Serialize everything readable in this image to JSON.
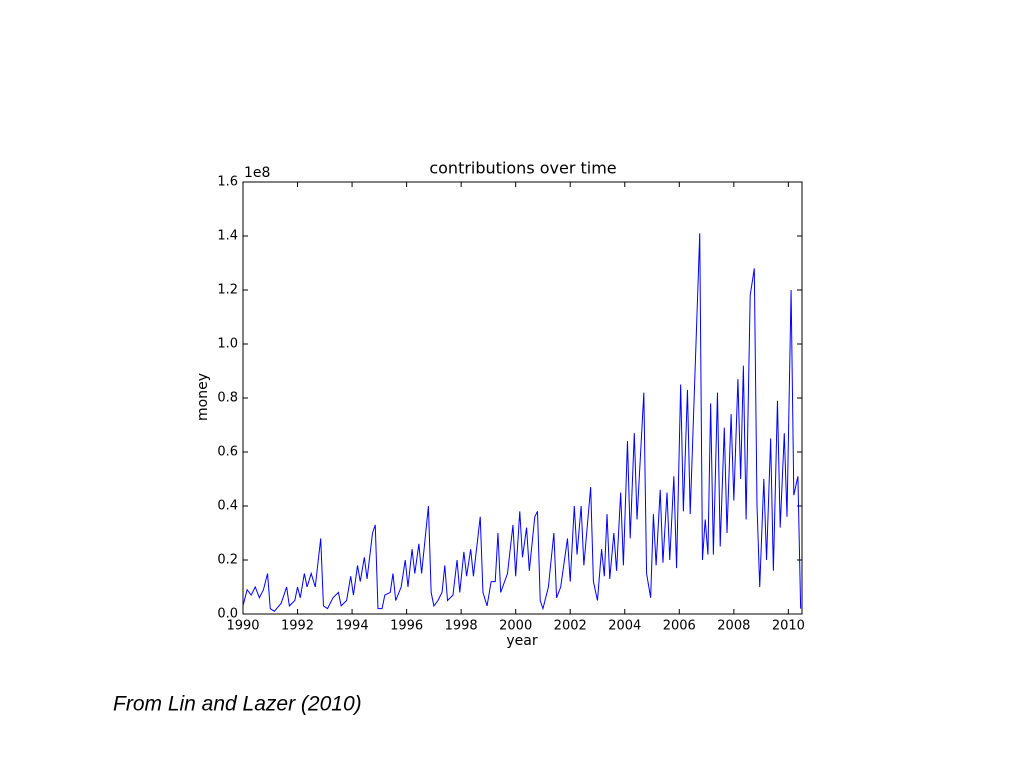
{
  "chart_data": {
    "type": "line",
    "title": "contributions over time",
    "xlabel": "year",
    "ylabel": "money",
    "y_offset_label": "1e8",
    "caption": "From Lin and Lazer (2010)",
    "x": [
      1990.0,
      1990.15,
      1990.3,
      1990.45,
      1990.6,
      1990.75,
      1990.9,
      1991.0,
      1991.15,
      1991.4,
      1991.6,
      1991.7,
      1991.9,
      1992.0,
      1992.1,
      1992.25,
      1992.35,
      1992.5,
      1992.65,
      1992.85,
      1992.95,
      1993.1,
      1993.3,
      1993.5,
      1993.6,
      1993.8,
      1993.95,
      1994.05,
      1994.2,
      1994.3,
      1994.45,
      1994.55,
      1994.75,
      1994.85,
      1994.95,
      1995.1,
      1995.2,
      1995.4,
      1995.5,
      1995.6,
      1995.8,
      1995.95,
      1996.05,
      1996.2,
      1996.3,
      1996.45,
      1996.55,
      1996.8,
      1996.9,
      1997.0,
      1997.15,
      1997.3,
      1997.4,
      1997.5,
      1997.7,
      1997.85,
      1997.95,
      1998.1,
      1998.2,
      1998.35,
      1998.45,
      1998.7,
      1998.8,
      1998.95,
      1999.1,
      1999.25,
      1999.35,
      1999.45,
      1999.7,
      1999.9,
      2000.0,
      2000.15,
      2000.25,
      2000.4,
      2000.5,
      2000.7,
      2000.8,
      2000.9,
      2001.0,
      2001.2,
      2001.4,
      2001.5,
      2001.65,
      2001.9,
      2002.0,
      2002.15,
      2002.25,
      2002.4,
      2002.5,
      2002.75,
      2002.85,
      2003.0,
      2003.15,
      2003.25,
      2003.35,
      2003.45,
      2003.6,
      2003.7,
      2003.85,
      2003.95,
      2004.1,
      2004.2,
      2004.35,
      2004.45,
      2004.7,
      2004.8,
      2004.95,
      2005.05,
      2005.15,
      2005.3,
      2005.4,
      2005.55,
      2005.65,
      2005.8,
      2005.9,
      2006.05,
      2006.15,
      2006.3,
      2006.4,
      2006.75,
      2006.85,
      2006.95,
      2007.05,
      2007.15,
      2007.25,
      2007.4,
      2007.5,
      2007.65,
      2007.75,
      2007.9,
      2008.0,
      2008.15,
      2008.25,
      2008.35,
      2008.45,
      2008.6,
      2008.75,
      2008.85,
      2008.95,
      2009.1,
      2009.2,
      2009.35,
      2009.45,
      2009.6,
      2009.7,
      2009.85,
      2009.95,
      2010.1,
      2010.2,
      2010.35,
      2010.45
    ],
    "series": [
      {
        "color": "#0000ff",
        "values": [
          0.03,
          0.09,
          0.07,
          0.1,
          0.06,
          0.09,
          0.15,
          0.02,
          0.01,
          0.04,
          0.1,
          0.03,
          0.05,
          0.1,
          0.06,
          0.15,
          0.1,
          0.15,
          0.1,
          0.28,
          0.03,
          0.02,
          0.06,
          0.08,
          0.03,
          0.05,
          0.14,
          0.07,
          0.18,
          0.12,
          0.21,
          0.13,
          0.3,
          0.33,
          0.02,
          0.02,
          0.07,
          0.08,
          0.15,
          0.05,
          0.1,
          0.2,
          0.1,
          0.24,
          0.15,
          0.26,
          0.15,
          0.4,
          0.08,
          0.03,
          0.05,
          0.08,
          0.18,
          0.05,
          0.07,
          0.2,
          0.08,
          0.23,
          0.14,
          0.24,
          0.14,
          0.36,
          0.08,
          0.03,
          0.12,
          0.12,
          0.3,
          0.08,
          0.15,
          0.33,
          0.14,
          0.38,
          0.21,
          0.32,
          0.16,
          0.36,
          0.38,
          0.05,
          0.02,
          0.1,
          0.3,
          0.06,
          0.1,
          0.28,
          0.12,
          0.4,
          0.22,
          0.4,
          0.18,
          0.47,
          0.12,
          0.05,
          0.24,
          0.14,
          0.37,
          0.13,
          0.3,
          0.16,
          0.45,
          0.18,
          0.64,
          0.28,
          0.67,
          0.35,
          0.82,
          0.15,
          0.06,
          0.37,
          0.18,
          0.46,
          0.19,
          0.45,
          0.2,
          0.51,
          0.17,
          0.85,
          0.38,
          0.83,
          0.37,
          1.41,
          0.2,
          0.35,
          0.22,
          0.78,
          0.22,
          0.82,
          0.25,
          0.69,
          0.3,
          0.74,
          0.42,
          0.87,
          0.5,
          0.92,
          0.35,
          1.18,
          1.28,
          0.4,
          0.1,
          0.5,
          0.2,
          0.65,
          0.16,
          0.79,
          0.32,
          0.67,
          0.36,
          1.2,
          0.44,
          0.51,
          0.02
        ]
      }
    ],
    "xlim": [
      1990,
      2010.5
    ],
    "xticks": [
      1990,
      1992,
      1994,
      1996,
      1998,
      2000,
      2002,
      2004,
      2006,
      2008,
      2010
    ],
    "ylim": [
      0,
      1.6
    ],
    "yticks": [
      {
        "value": 0,
        "label": "0.0"
      },
      0.2,
      0.4,
      0.6,
      0.8,
      {
        "value": 1,
        "label": "1.0"
      },
      1.2,
      1.4,
      1.6
    ]
  }
}
